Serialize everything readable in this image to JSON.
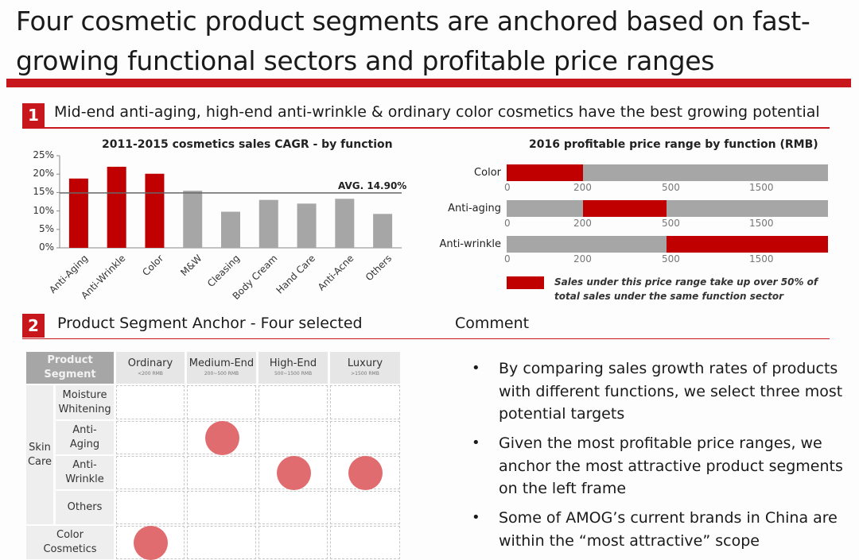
{
  "title": "Four cosmetic product segments are anchored based on fast-growing functional sectors and profitable price ranges",
  "section1": {
    "number": "1",
    "heading": "Mid-end anti-aging, high-end anti-wrinkle & ordinary color cosmetics have the best growing potential"
  },
  "section2": {
    "number": "2",
    "heading": "Product Segment Anchor - Four selected",
    "comment_heading": "Comment"
  },
  "colors": {
    "accent": "#c8161d",
    "bar_red": "#c00000",
    "bar_grey": "#a6a6a6",
    "dot": "#e06c6f"
  },
  "chart_data": [
    {
      "type": "bar",
      "title": "2011-2015 cosmetics sales CAGR - by function",
      "categories": [
        "Anti-Aging",
        "Anti-Wrinkle",
        "Color",
        "M&W",
        "Cleasing",
        "Body Cream",
        "Hand Care",
        "Anti-Acne",
        "Others"
      ],
      "values": [
        18.8,
        22.0,
        20.1,
        15.5,
        9.8,
        13.0,
        12.0,
        13.3,
        9.2
      ],
      "highlight": [
        true,
        true,
        true,
        false,
        false,
        false,
        false,
        false,
        false
      ],
      "yticks": [
        "0%",
        "5%",
        "10%",
        "15%",
        "20%",
        "25%"
      ],
      "ylim": [
        0,
        25
      ],
      "average": 14.9,
      "average_label": "AVG. 14.90%"
    },
    {
      "type": "bar",
      "title": "2016 profitable price range by function (RMB)",
      "ticks": [
        "0",
        "200",
        "500",
        "1500"
      ],
      "rows": [
        {
          "label": "Color",
          "range": [
            0,
            200
          ]
        },
        {
          "label": "Anti-aging",
          "range": [
            200,
            500
          ]
        },
        {
          "label": "Anti-wrinkle",
          "range": [
            500,
            ">1500"
          ]
        }
      ],
      "legend": "Sales under this price range take up over 50% of total sales under the same function sector"
    }
  ],
  "matrix": {
    "corner": "Product Segment",
    "columns": [
      {
        "name": "Ordinary",
        "range": "<200 RMB"
      },
      {
        "name": "Medium-End",
        "range": "200~500 RMB"
      },
      {
        "name": "High-End",
        "range": "500~1500 RMB"
      },
      {
        "name": "Luxury",
        "range": ">1500 RMB"
      }
    ],
    "group": "Skin Care",
    "rows": [
      "Moisture Whitening",
      "Anti-Aging",
      "Anti-Wrinkle",
      "Others",
      "Color Cosmetics"
    ],
    "selected": [
      [
        1,
        1
      ],
      [
        2,
        2
      ],
      [
        2,
        3
      ],
      [
        4,
        0
      ]
    ]
  },
  "comments": [
    "By comparing sales growth rates of products with different functions, we select three most potential targets",
    "Given the most profitable price ranges, we anchor the most attractive product segments on the left frame",
    "Some of AMOG’s current brands in China are within the “most attractive” scope"
  ]
}
